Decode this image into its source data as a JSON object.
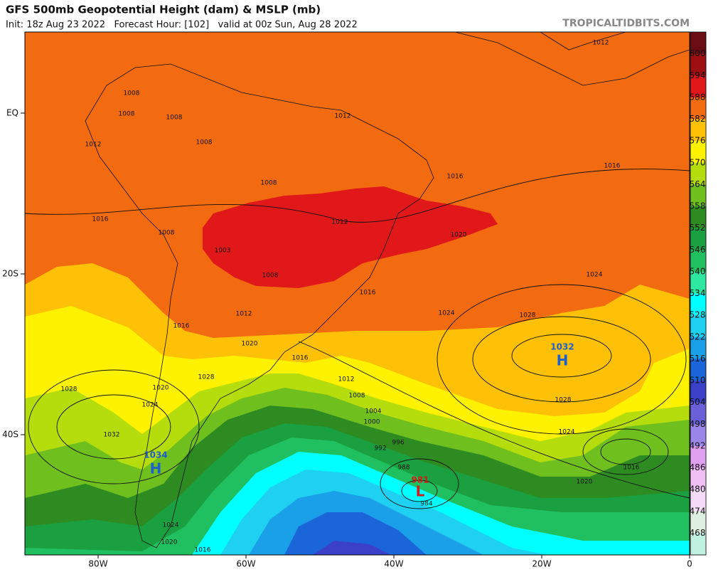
{
  "header": {
    "title": "GFS 500mb Geopotential Height (dam) & MSLP (mb)",
    "subtitle": "Init: 18z Aug 23 2022   Forecast Hour: [102]   valid at 00z Sun, Aug 28 2022",
    "site": "TROPICALTIDBITS.COM"
  },
  "axes": {
    "lat_labels": [
      "EQ",
      "20S",
      "40S"
    ],
    "lon_labels": [
      "80W",
      "60W",
      "40W",
      "20W",
      "0"
    ]
  },
  "colorbar": {
    "labels": [
      600,
      594,
      588,
      582,
      576,
      570,
      564,
      558,
      552,
      546,
      540,
      534,
      528,
      522,
      516,
      510,
      504,
      498,
      492,
      486,
      480,
      474,
      468
    ],
    "colors": [
      "#6b0d14",
      "#9e0f12",
      "#e0181a",
      "#f26b10",
      "#ffc107",
      "#fff200",
      "#b5dc0c",
      "#6fbf1f",
      "#2e8b22",
      "#1aa040",
      "#20c060",
      "#2ee8a0",
      "#00ffff",
      "#20d0f0",
      "#1aa0e8",
      "#1a66d8",
      "#3a40c8",
      "#6a60d8",
      "#9a86e8",
      "#e0a0f0",
      "#eec0f4",
      "#f4dcf8",
      "#e0f0e0",
      "#c0f0e0"
    ]
  },
  "map_labels": [
    "1012",
    "1008",
    "1008",
    "1008",
    "1012",
    "1012",
    "1008",
    "1016",
    "1016",
    "1008",
    "1016",
    "1012",
    "1008",
    "1003",
    "1020",
    "1008",
    "1024",
    "1016",
    "1024",
    "1012",
    "1028",
    "1016",
    "1020",
    "1016",
    "1032",
    "H",
    "1028",
    "1012",
    "1020",
    "1028",
    "1008",
    "1024",
    "1004",
    "1028",
    "1000",
    "1032",
    "1024",
    "996",
    "992",
    "1034",
    "H",
    "988",
    "1016",
    "981",
    "L",
    "1020",
    "984",
    "1024",
    "1020",
    "1016"
  ]
}
